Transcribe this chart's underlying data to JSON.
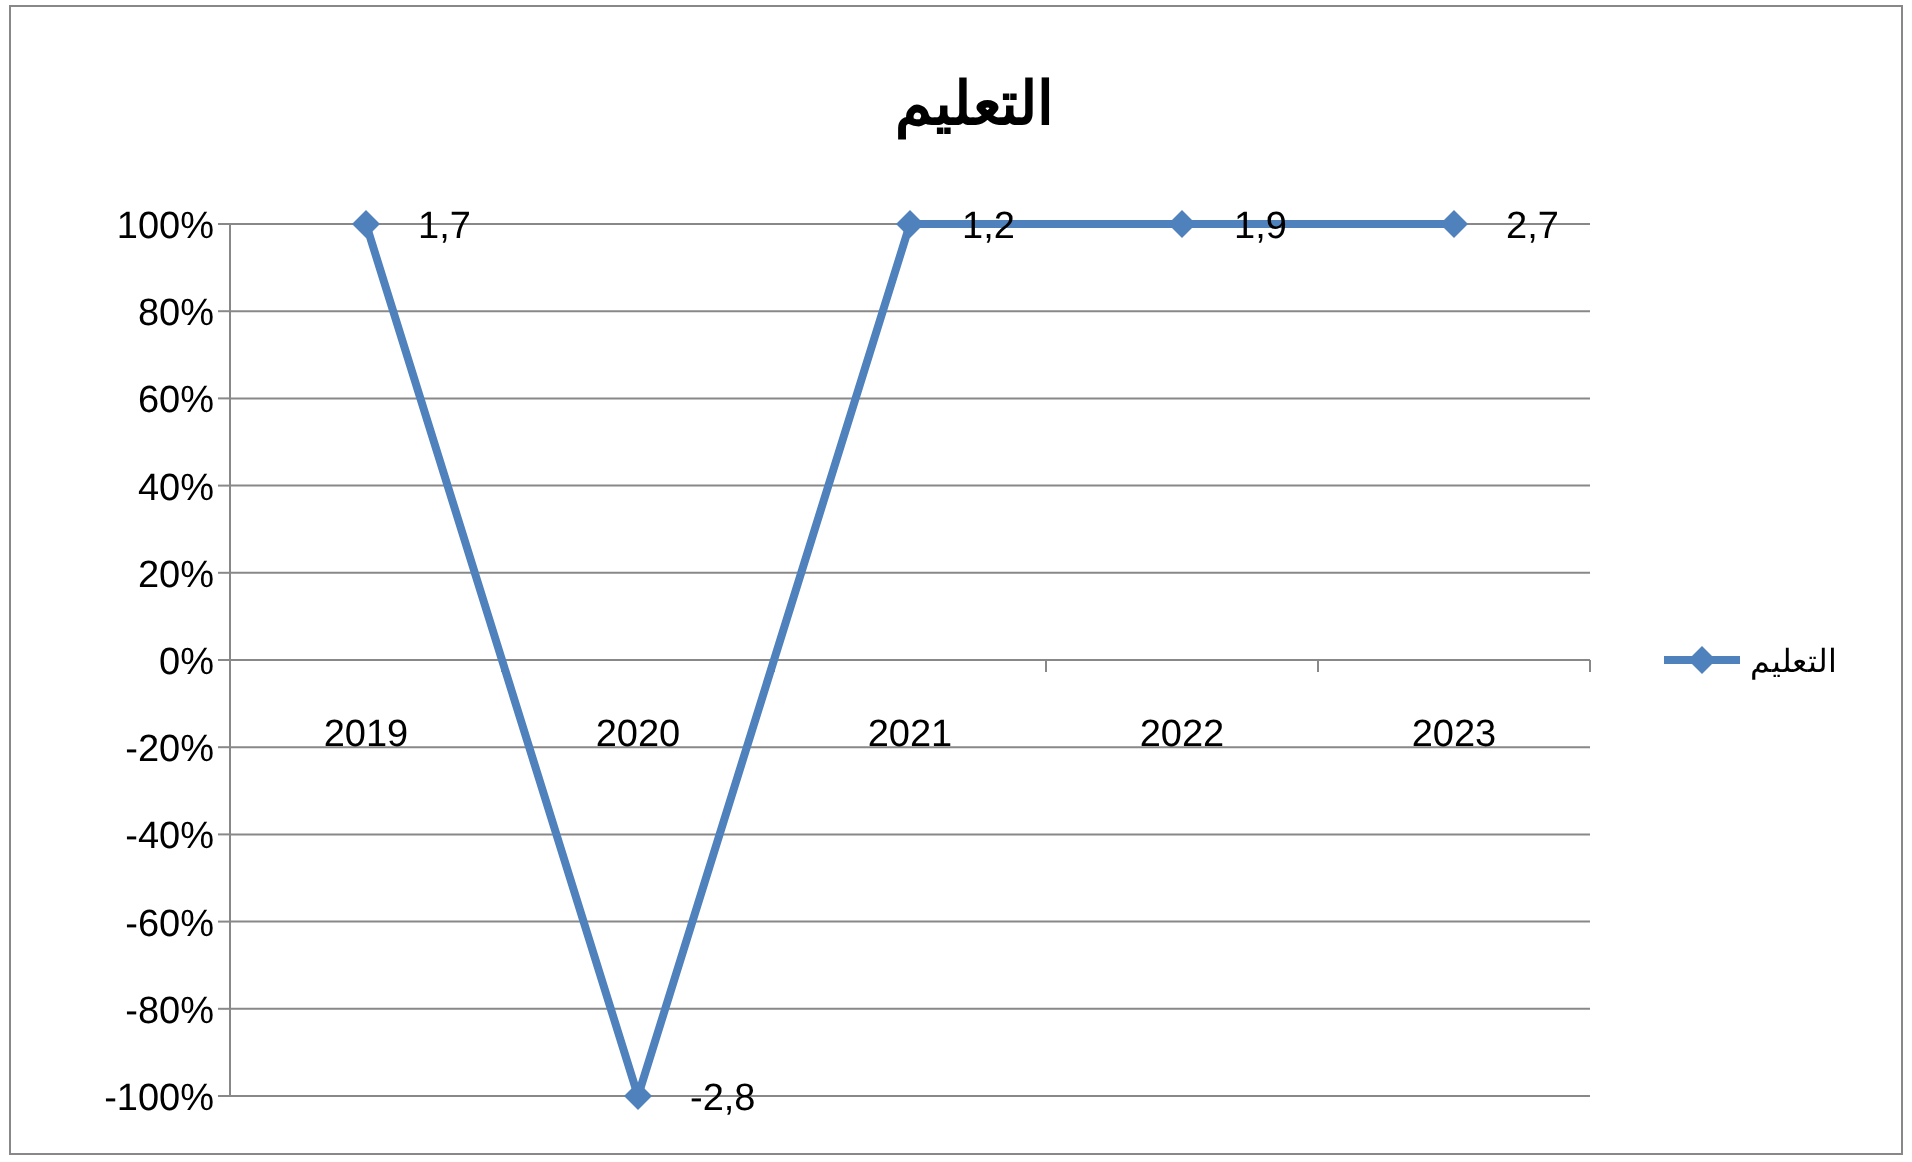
{
  "chart_data": {
    "type": "line",
    "title": "التعليم",
    "categories": [
      "2019",
      "2020",
      "2021",
      "2022",
      "2023"
    ],
    "series": [
      {
        "name": "التعليم",
        "color": "#4f81bd",
        "values": [
          100,
          -100,
          100,
          100,
          100
        ]
      }
    ],
    "ylim": [
      -100,
      100
    ],
    "yticks": [
      {
        "value": -100,
        "label": "-100%"
      },
      {
        "value": -80,
        "label": "-80%"
      },
      {
        "value": -60,
        "label": "-60%"
      },
      {
        "value": -40,
        "label": "-40%"
      },
      {
        "value": -20,
        "label": "-20%"
      },
      {
        "value": 0,
        "label": "0%"
      },
      {
        "value": 20,
        "label": "20%"
      },
      {
        "value": 40,
        "label": "40%"
      },
      {
        "value": 60,
        "label": "60%"
      },
      {
        "value": 80,
        "label": "80%"
      },
      {
        "value": 100,
        "label": "100%"
      }
    ],
    "annotations": [
      {
        "text": "1,7",
        "x": "2019",
        "y": 100
      },
      {
        "text": "-2,8",
        "x": "2020",
        "y": -100
      },
      {
        "text": "1,2",
        "x": "2021",
        "y": 100
      },
      {
        "text": "1,9",
        "x": "2022",
        "y": 100
      },
      {
        "text": "2,7",
        "x": "2023",
        "y": 100
      }
    ],
    "grid": "y",
    "legend": "right",
    "marker": "diamond",
    "line_style": "solid"
  }
}
